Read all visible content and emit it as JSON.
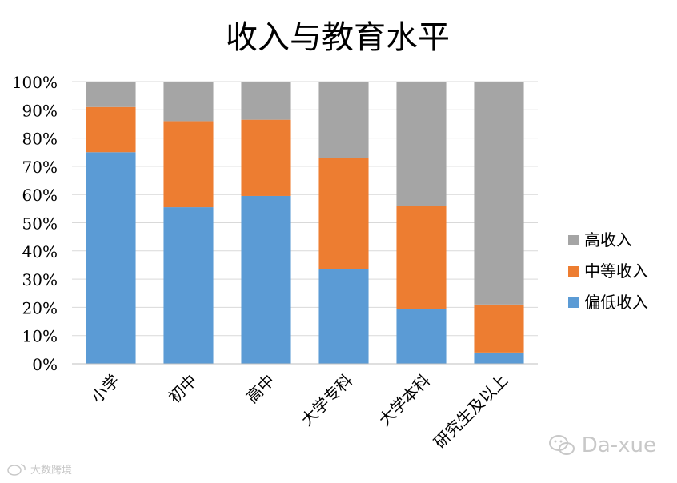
{
  "chart_data": {
    "type": "bar",
    "stacked": true,
    "title": "收入与教育水平",
    "categories": [
      "小学",
      "初中",
      "高中",
      "大学专科",
      "大学本科",
      "研究生及以上"
    ],
    "series": [
      {
        "name": "偏低收入",
        "color": "#5b9bd5",
        "values": [
          75,
          55.5,
          59.5,
          33.5,
          19.5,
          4
        ]
      },
      {
        "name": "中等收入",
        "color": "#ed7d31",
        "values": [
          16,
          30.5,
          27,
          39.5,
          36.5,
          17
        ]
      },
      {
        "name": "高收入",
        "color": "#a5a5a5",
        "values": [
          9,
          14,
          13.5,
          27,
          44,
          79
        ]
      }
    ],
    "ylim": [
      0,
      100
    ],
    "yticks": [
      "0%",
      "10%",
      "20%",
      "30%",
      "40%",
      "50%",
      "60%",
      "70%",
      "80%",
      "90%",
      "100%"
    ],
    "grid": true,
    "legend_position": "right",
    "legend_order": [
      "高收入",
      "中等收入",
      "偏低收入"
    ]
  },
  "watermarks": {
    "right_text": "Da-xue",
    "left_text": "大数跨境"
  },
  "icons": {
    "wechat": "wechat-icon",
    "weibo": "weibo-icon"
  }
}
